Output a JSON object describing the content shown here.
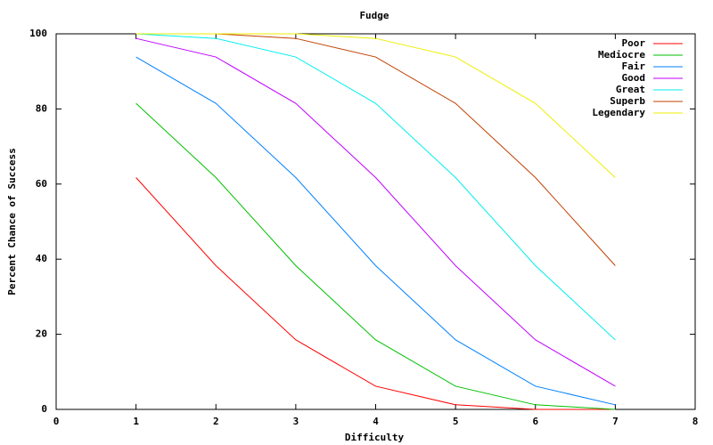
{
  "chart_data": {
    "type": "line",
    "title": "Fudge",
    "x_label": "Difficulty",
    "y_label": "Percent Chance of Success",
    "x": [
      1,
      2,
      3,
      4,
      5,
      6,
      7
    ],
    "series": [
      {
        "name": "Poor",
        "color": "#ff0000",
        "values": [
          61.73,
          38.27,
          18.52,
          6.17,
          1.23,
          0,
          0
        ]
      },
      {
        "name": "Mediocre",
        "color": "#00c000",
        "values": [
          81.48,
          61.73,
          38.27,
          18.52,
          6.17,
          1.23,
          0
        ]
      },
      {
        "name": "Fair",
        "color": "#0080ff",
        "values": [
          93.83,
          81.48,
          61.73,
          38.27,
          18.52,
          6.17,
          1.23
        ]
      },
      {
        "name": "Good",
        "color": "#c000ff",
        "values": [
          98.77,
          93.83,
          81.48,
          61.73,
          38.27,
          18.52,
          6.17
        ]
      },
      {
        "name": "Great",
        "color": "#00eeee",
        "values": [
          100,
          98.77,
          93.83,
          81.48,
          61.73,
          38.27,
          18.52
        ]
      },
      {
        "name": "Superb",
        "color": "#c04000",
        "values": [
          100,
          100,
          98.77,
          93.83,
          81.48,
          61.73,
          38.27
        ]
      },
      {
        "name": "Legendary",
        "color": "#eeee00",
        "values": [
          100,
          100,
          100,
          98.77,
          93.83,
          81.48,
          61.73
        ]
      }
    ],
    "xlim": [
      0,
      8
    ],
    "xticks": [
      0,
      1,
      2,
      3,
      4,
      5,
      6,
      7,
      8
    ],
    "ylim": [
      0,
      100
    ],
    "yticks": [
      0,
      20,
      40,
      60,
      80,
      100
    ],
    "legend": "top-right",
    "grid": false
  }
}
